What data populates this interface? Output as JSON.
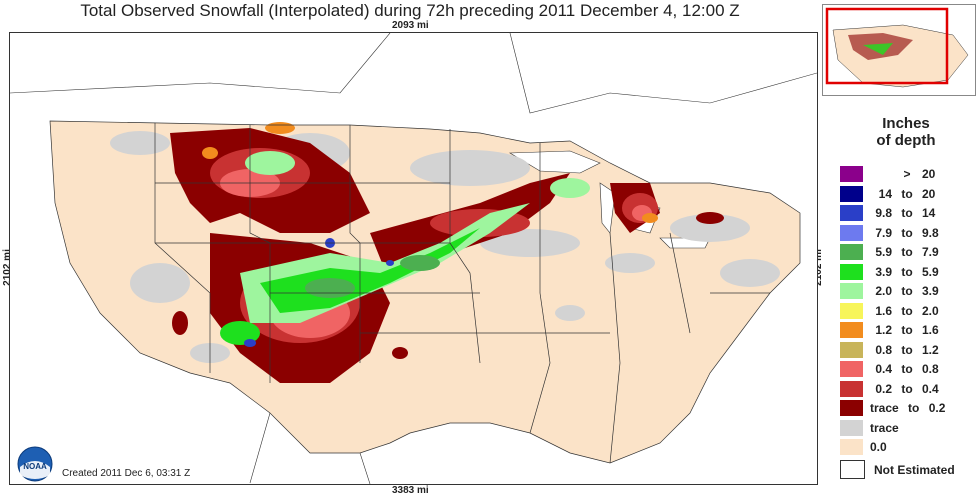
{
  "title": "Total Observed Snowfall (Interpolated) during 72h preceding 2011 December 4, 12:00 Z",
  "dimensions": {
    "top": "2093 mi",
    "bottom": "3383 mi",
    "left": "2102 mi",
    "right": "2102 mi"
  },
  "created": "Created 2011 Dec 6, 03:31 Z",
  "legend": {
    "title_line1": "Inches",
    "title_line2": "of depth",
    "entries": [
      {
        "lo": "",
        "to": ">",
        "hi": "20",
        "color": "#8b008b"
      },
      {
        "lo": "14",
        "to": "to",
        "hi": "20",
        "color": "#00008b"
      },
      {
        "lo": "9.8",
        "to": "to",
        "hi": "14",
        "color": "#2a3fc8"
      },
      {
        "lo": "7.9",
        "to": "to",
        "hi": "9.8",
        "color": "#6d7aef"
      },
      {
        "lo": "5.9",
        "to": "to",
        "hi": "7.9",
        "color": "#4caf50"
      },
      {
        "lo": "3.9",
        "to": "to",
        "hi": "5.9",
        "color": "#1ee01e"
      },
      {
        "lo": "2.0",
        "to": "to",
        "hi": "3.9",
        "color": "#9ef59e"
      },
      {
        "lo": "1.6",
        "to": "to",
        "hi": "2.0",
        "color": "#f7f55a"
      },
      {
        "lo": "1.2",
        "to": "to",
        "hi": "1.6",
        "color": "#f28c1e"
      },
      {
        "lo": "0.8",
        "to": "to",
        "hi": "1.2",
        "color": "#c8b45a"
      },
      {
        "lo": "0.4",
        "to": "to",
        "hi": "0.8",
        "color": "#f06464"
      },
      {
        "lo": "0.2",
        "to": "to",
        "hi": "0.4",
        "color": "#c83232"
      },
      {
        "lo": "trace",
        "to": "to",
        "hi": "0.2",
        "color": "#8b0000"
      },
      {
        "lo": "trace",
        "to": "",
        "hi": "",
        "color": "#d3d3d3"
      },
      {
        "lo": "0.0",
        "to": "",
        "hi": "",
        "color": "#fbe3c8"
      }
    ],
    "not_estimated": "Not Estimated"
  },
  "logo_text": "NOAA"
}
